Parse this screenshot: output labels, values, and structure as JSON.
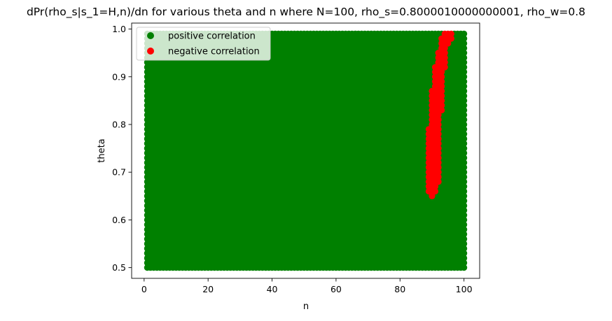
{
  "chart_data": {
    "type": "scatter",
    "title": "dPr(rho_s|s_1=H,n)/dn for various theta and n where N=100, rho_s=0.8000010000000001, rho_w=0.8",
    "xlabel": "n",
    "ylabel": "theta",
    "xlim": [
      -3.9,
      104.9
    ],
    "ylim": [
      0.4775,
      1.0125
    ],
    "xticks": [
      0,
      20,
      40,
      60,
      80,
      100
    ],
    "yticks": [
      0.5,
      0.6,
      0.7,
      0.8,
      0.9,
      1.0
    ],
    "xtick_labels": [
      "0",
      "20",
      "40",
      "60",
      "80",
      "100"
    ],
    "ytick_labels": [
      "0.5",
      "0.6",
      "0.7",
      "0.8",
      "0.9",
      "1.0"
    ],
    "grid": false,
    "legend": {
      "placement": "upper-left",
      "entries": [
        "positive correlation",
        "negative correlation"
      ]
    },
    "series": [
      {
        "name": "positive correlation",
        "color": "#008000",
        "region": {
          "n_min": 1,
          "n_max": 100,
          "theta_min": 0.5,
          "theta_max": 0.99
        },
        "note": "covers the whole n=1..100, theta=0.50..0.99 grid not marked negative"
      },
      {
        "name": "negative correlation",
        "color": "#ff0000",
        "bands": [
          {
            "theta_min": 0.65,
            "theta_max": 0.66,
            "n_min": 90,
            "n_max": 90
          },
          {
            "theta_min": 0.66,
            "theta_max": 0.68,
            "n_min": 89,
            "n_max": 91
          },
          {
            "theta_min": 0.68,
            "theta_max": 0.73,
            "n_min": 89,
            "n_max": 92
          },
          {
            "theta_min": 0.73,
            "theta_max": 0.79,
            "n_min": 89,
            "n_max": 92
          },
          {
            "theta_min": 0.79,
            "theta_max": 0.83,
            "n_min": 90,
            "n_max": 92
          },
          {
            "theta_min": 0.83,
            "theta_max": 0.87,
            "n_min": 90,
            "n_max": 93
          },
          {
            "theta_min": 0.87,
            "theta_max": 0.92,
            "n_min": 91,
            "n_max": 93
          },
          {
            "theta_min": 0.92,
            "theta_max": 0.95,
            "n_min": 92,
            "n_max": 94
          },
          {
            "theta_min": 0.95,
            "theta_max": 0.97,
            "n_min": 93,
            "n_max": 94
          },
          {
            "theta_min": 0.97,
            "theta_max": 0.98,
            "n_min": 93,
            "n_max": 95
          },
          {
            "theta_min": 0.98,
            "theta_max": 0.99,
            "n_min": 94,
            "n_max": 96
          },
          {
            "theta_min": 0.99,
            "theta_max": 0.99,
            "n_min": 95,
            "n_max": 96
          }
        ]
      }
    ]
  }
}
